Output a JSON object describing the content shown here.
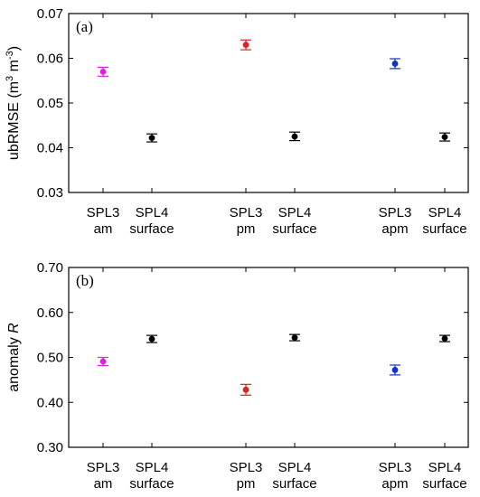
{
  "chart_data": [
    {
      "type": "scatter",
      "panel_label": "(a)",
      "ylabel": "ubRMSE (m3 m-3)",
      "ylabel_parts": {
        "main": "ubRMSE (m",
        "sup1": "3",
        "mid": " m",
        "sup2": "-3",
        "end": ")"
      },
      "ylim": [
        0.03,
        0.07
      ],
      "yticks": [
        0.03,
        0.04,
        0.05,
        0.06,
        0.07
      ],
      "ytick_labels": [
        "0.03",
        "0.04",
        "0.05",
        "0.06",
        "0.07"
      ],
      "grid": false,
      "categories": [
        {
          "line1": "SPL3",
          "line2": "am"
        },
        {
          "line1": "SPL4",
          "line2": "surface"
        },
        {
          "line1": "SPL3",
          "line2": "pm"
        },
        {
          "line1": "SPL4",
          "line2": "surface"
        },
        {
          "line1": "SPL3",
          "line2": "apm"
        },
        {
          "line1": "SPL4",
          "line2": "surface"
        }
      ],
      "points": [
        {
          "value": 0.057,
          "low": 0.056,
          "high": 0.058,
          "color": "#e020e0"
        },
        {
          "value": 0.0422,
          "low": 0.0413,
          "high": 0.0431,
          "color": "#000000"
        },
        {
          "value": 0.063,
          "low": 0.0619,
          "high": 0.0641,
          "color": "#e02020"
        },
        {
          "value": 0.0425,
          "low": 0.0416,
          "high": 0.0435,
          "color": "#000000"
        },
        {
          "value": 0.0588,
          "low": 0.0577,
          "high": 0.0599,
          "color": "#1030d0"
        },
        {
          "value": 0.0424,
          "low": 0.0415,
          "high": 0.0433,
          "color": "#000000"
        }
      ]
    },
    {
      "type": "scatter",
      "panel_label": "(b)",
      "ylabel": "anomaly R",
      "ylabel_parts": {
        "main": "anomaly ",
        "italic": "R"
      },
      "ylim": [
        0.3,
        0.7
      ],
      "yticks": [
        0.3,
        0.4,
        0.5,
        0.6,
        0.7
      ],
      "ytick_labels": [
        "0.30",
        "0.40",
        "0.50",
        "0.60",
        "0.70"
      ],
      "grid": false,
      "categories": [
        {
          "line1": "SPL3",
          "line2": "am"
        },
        {
          "line1": "SPL4",
          "line2": "surface"
        },
        {
          "line1": "SPL3",
          "line2": "pm"
        },
        {
          "line1": "SPL4",
          "line2": "surface"
        },
        {
          "line1": "SPL3",
          "line2": "apm"
        },
        {
          "line1": "SPL4",
          "line2": "surface"
        }
      ],
      "points": [
        {
          "value": 0.491,
          "low": 0.482,
          "high": 0.5,
          "color": "#e020e0"
        },
        {
          "value": 0.541,
          "low": 0.533,
          "high": 0.549,
          "color": "#000000"
        },
        {
          "value": 0.428,
          "low": 0.416,
          "high": 0.44,
          "color": "#e02020"
        },
        {
          "value": 0.544,
          "low": 0.537,
          "high": 0.551,
          "color": "#000000"
        },
        {
          "value": 0.472,
          "low": 0.461,
          "high": 0.483,
          "color": "#1030d0"
        },
        {
          "value": 0.542,
          "low": 0.535,
          "high": 0.549,
          "color": "#000000"
        }
      ]
    }
  ]
}
